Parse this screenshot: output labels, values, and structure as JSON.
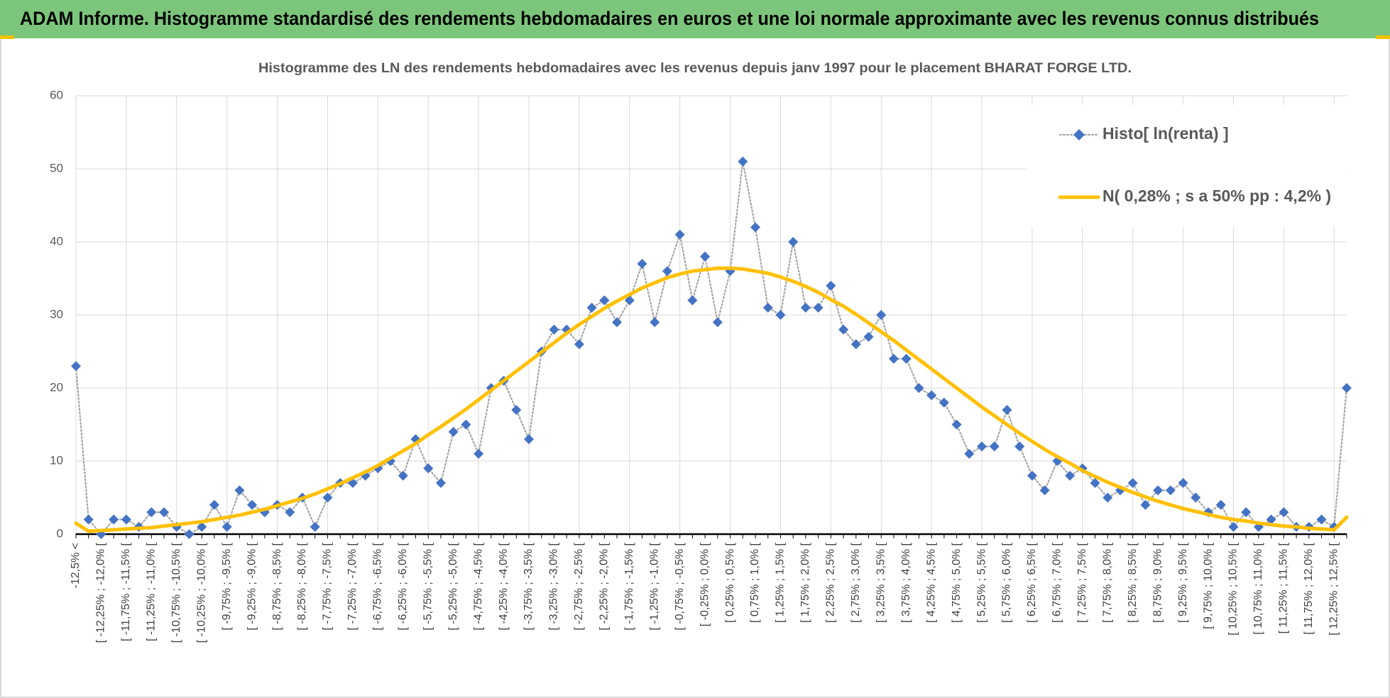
{
  "chart_data": {
    "type": "line",
    "title": "ADAM Informe. Histogramme standardisé des rendements hebdomadaires en euros et une loi normale approximante avec les revenus connus distribués",
    "subtitle": "Histogramme des LN des rendements hebdomadaires avec les revenus depuis janv 1997 pour le placement BHARAT FORGE LTD.",
    "categories": [
      "-12,5% <",
      null,
      "[ -12,25% ; -12,0% [",
      null,
      "[ -11,75% ; -11,5% [",
      null,
      "[ -11,25% ; -11,0% [",
      null,
      "[ -10,75% ; -10,5% [",
      null,
      "[ -10,25% ; -10,0% [",
      null,
      "[ -9,75% ; -9,5% [",
      null,
      "[ -9,25% ; -9,0% [",
      null,
      "[ -8,75% ; -8,5% [",
      null,
      "[ -8,25% ; -8,0% [",
      null,
      "[ -7,75% ; -7,5% [",
      null,
      "[ -7,25% ; -7,0% [",
      null,
      "[ -6,75% ; -6,5% [",
      null,
      "[ -6,25% ; -6,0% [",
      null,
      "[ -5,75% ; -5,5% [",
      null,
      "[ -5,25% ; -5,0% [",
      null,
      "[ -4,75% ; -4,5% [",
      null,
      "[ -4,25% ; -4,0% [",
      null,
      "[ -3,75% ; -3,5% [",
      null,
      "[ -3,25% ; -3,0% [",
      null,
      "[ -2,75% ; -2,5% [",
      null,
      "[ -2,25% ; -2,0% [",
      null,
      "[ -1,75% ; -1,5% [",
      null,
      "[ -1,25% ; -1,0% [",
      null,
      "[ -0,75% ; -0,5% [",
      null,
      "[ -0,25% ; 0,0% [",
      null,
      "[ 0,25% ; 0,5% [",
      null,
      "[ 0,75% ; 1,0% [",
      null,
      "[ 1,25% ; 1,5% [",
      null,
      "[ 1,75% ; 2,0% [",
      null,
      "[ 2,25% ; 2,5% [",
      null,
      "[ 2,75% ; 3,0% [",
      null,
      "[ 3,25% ; 3,5% [",
      null,
      "[ 3,75% ; 4,0% [",
      null,
      "[ 4,25% ; 4,5% [",
      null,
      "[ 4,75% ; 5,0% [",
      null,
      "[ 5,25% ; 5,5% [",
      null,
      "[ 5,75% ; 6,0% [",
      null,
      "[ 6,25% ; 6,5% [",
      null,
      "[ 6,75% ; 7,0% [",
      null,
      "[ 7,25% ; 7,5% [",
      null,
      "[ 7,75% ; 8,0% [",
      null,
      "[ 8,25% ; 8,5% [",
      null,
      "[ 8,75% ; 9,0% [",
      null,
      "[ 9,25% ; 9,5% [",
      null,
      "[ 9,75% ; 10,0% [",
      null,
      "[ 10,25% ; 10,5% [",
      null,
      "[ 10,75% ; 11,0% [",
      null,
      "[ 11,25% ; 11,5% [",
      null,
      "[ 11,75% ; 12,0% [",
      null,
      "[ 12,25% ; 12,5% [",
      null
    ],
    "series": [
      {
        "name": "Histo[ ln(renta) ]",
        "color": "#4472c4",
        "line_color": "#a6a6a6",
        "line_style": "dotted",
        "marker": "diamond",
        "values": [
          23,
          2,
          0,
          2,
          2,
          1,
          3,
          3,
          1,
          0,
          1,
          4,
          1,
          6,
          4,
          3,
          4,
          3,
          5,
          1,
          5,
          7,
          7,
          8,
          9,
          10,
          8,
          13,
          9,
          7,
          14,
          15,
          11,
          20,
          21,
          17,
          13,
          25,
          28,
          28,
          26,
          31,
          32,
          29,
          32,
          37,
          29,
          36,
          41,
          32,
          38,
          29,
          36,
          51,
          42,
          31,
          30,
          40,
          31,
          31,
          34,
          28,
          26,
          27,
          30,
          24,
          24,
          20,
          19,
          18,
          15,
          11,
          12,
          12,
          17,
          12,
          8,
          6,
          10,
          8,
          9,
          7,
          5,
          6,
          7,
          4,
          6,
          6,
          7,
          5,
          3,
          4,
          1,
          3,
          1,
          2,
          3,
          1,
          1,
          2,
          1,
          20
        ]
      },
      {
        "name": "N( 0,28% ; s a 50% pp : 4,2% )",
        "color": "#ffc000",
        "line_style": "solid",
        "marker": "none",
        "values": [
          1.5,
          0.4,
          0.5,
          0.6,
          0.7,
          0.8,
          0.9,
          1.1,
          1.3,
          1.5,
          1.7,
          2.0,
          2.3,
          2.6,
          3.0,
          3.4,
          3.9,
          4.4,
          4.9,
          5.5,
          6.2,
          6.9,
          7.7,
          8.5,
          9.4,
          10.4,
          11.4,
          12.4,
          13.6,
          14.7,
          15.9,
          17.1,
          18.4,
          19.7,
          21.0,
          22.3,
          23.6,
          24.9,
          26.2,
          27.5,
          28.7,
          29.8,
          30.9,
          31.9,
          32.8,
          33.7,
          34.4,
          35.1,
          35.6,
          36.0,
          36.2,
          36.4,
          36.4,
          36.3,
          36.0,
          35.7,
          35.2,
          34.6,
          33.9,
          33.1,
          32.1,
          31.2,
          30.1,
          28.9,
          27.7,
          26.5,
          25.2,
          23.9,
          22.6,
          21.3,
          20.0,
          18.7,
          17.4,
          16.2,
          15.0,
          13.8,
          12.7,
          11.6,
          10.6,
          9.7,
          8.7,
          7.9,
          7.1,
          6.4,
          5.7,
          5.1,
          4.5,
          4.0,
          3.5,
          3.1,
          2.7,
          2.3,
          2.0,
          1.8,
          1.5,
          1.3,
          1.1,
          1.0,
          0.8,
          0.7,
          0.6,
          2.3
        ]
      }
    ],
    "ylim": [
      0,
      60
    ],
    "yticks": [
      0,
      10,
      20,
      30,
      40,
      50,
      60
    ],
    "grid": true,
    "legend": "top-right"
  }
}
